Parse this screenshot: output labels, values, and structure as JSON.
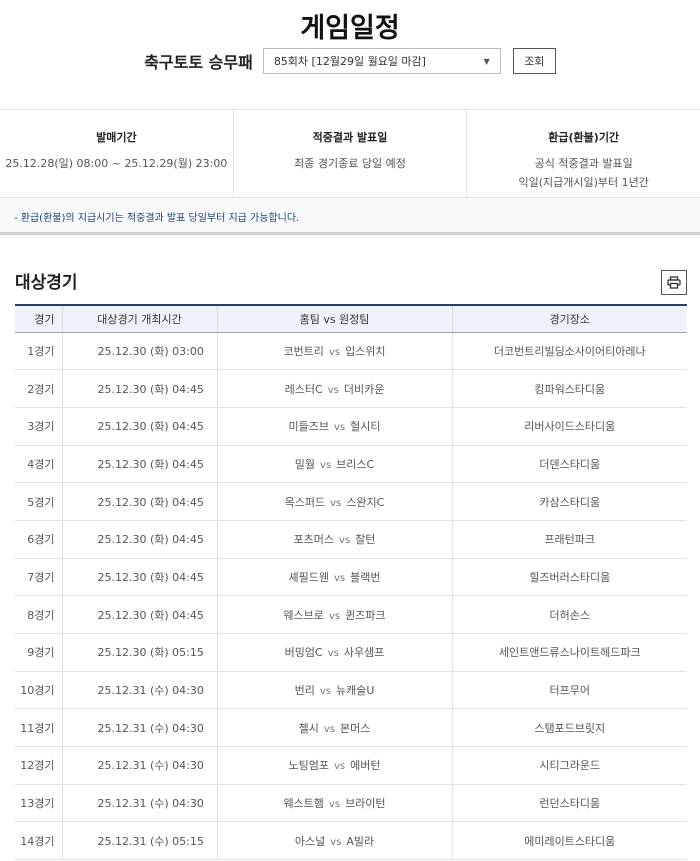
{
  "title": "게임일정",
  "game_label": "축구토토 승무패",
  "round_select": "85회차 [12월29일 월요일 마감]",
  "search_button": "조회",
  "info": [
    {
      "heading": "발매기간",
      "lines": [
        "25.12.28(일) 08:00 ~ 25.12.29(월) 23:00"
      ]
    },
    {
      "heading": "적중결과 발표일",
      "lines": [
        "최종 경기종료 당일 예정"
      ]
    },
    {
      "heading": "환급(환불)기간",
      "lines": [
        "공식 적중결과 발표일",
        "익일(지급개시일)부터 1년간"
      ]
    }
  ],
  "note": "- 환급(환불)의 지급시기는 적중결과 발표 당일부터 지급 가능합니다.",
  "section_title": "대상경기",
  "print_icon": "printer-icon",
  "table": {
    "headers": [
      "경기",
      "대상경기 개최시간",
      "홈팀 vs 원정팀",
      "경기장소"
    ],
    "vs": "vs",
    "rows": [
      {
        "no": "1경기",
        "time": "25.12.30 (화) 03:00",
        "home": "코번트리",
        "away": "입스위치",
        "venue": "더코번트리빌딩소사이어티아레나"
      },
      {
        "no": "2경기",
        "time": "25.12.30 (화) 04:45",
        "home": "레스터C",
        "away": "더비카운",
        "venue": "킹파워스타디움"
      },
      {
        "no": "3경기",
        "time": "25.12.30 (화) 04:45",
        "home": "미들즈브",
        "away": "헐시티",
        "venue": "리버사이드스타디움"
      },
      {
        "no": "4경기",
        "time": "25.12.30 (화) 04:45",
        "home": "밀월",
        "away": "브리스C",
        "venue": "더덴스타디움"
      },
      {
        "no": "5경기",
        "time": "25.12.30 (화) 04:45",
        "home": "옥스퍼드",
        "away": "스완지C",
        "venue": "카삼스타디움"
      },
      {
        "no": "6경기",
        "time": "25.12.30 (화) 04:45",
        "home": "포츠머스",
        "away": "찰턴",
        "venue": "프래턴파크"
      },
      {
        "no": "7경기",
        "time": "25.12.30 (화) 04:45",
        "home": "셰필드웬",
        "away": "블랙번",
        "venue": "힐즈버러스타디움"
      },
      {
        "no": "8경기",
        "time": "25.12.30 (화) 04:45",
        "home": "웨스브로",
        "away": "퀸즈파크",
        "venue": "더허손스"
      },
      {
        "no": "9경기",
        "time": "25.12.30 (화) 05:15",
        "home": "버밍엄C",
        "away": "사우샘프",
        "venue": "세인트앤드류스나이트헤드파크"
      },
      {
        "no": "10경기",
        "time": "25.12.31 (수) 04:30",
        "home": "번리",
        "away": "뉴캐슬U",
        "venue": "터프무어"
      },
      {
        "no": "11경기",
        "time": "25.12.31 (수) 04:30",
        "home": "첼시",
        "away": "본머스",
        "venue": "스탬포드브릿지"
      },
      {
        "no": "12경기",
        "time": "25.12.31 (수) 04:30",
        "home": "노팅엄포",
        "away": "에버턴",
        "venue": "시티그라운드"
      },
      {
        "no": "13경기",
        "time": "25.12.31 (수) 04:30",
        "home": "웨스트햄",
        "away": "브라이턴",
        "venue": "런던스타디움"
      },
      {
        "no": "14경기",
        "time": "25.12.31 (수) 05:15",
        "home": "아스널",
        "away": "A빌라",
        "venue": "에미레이트스타디움"
      }
    ]
  }
}
